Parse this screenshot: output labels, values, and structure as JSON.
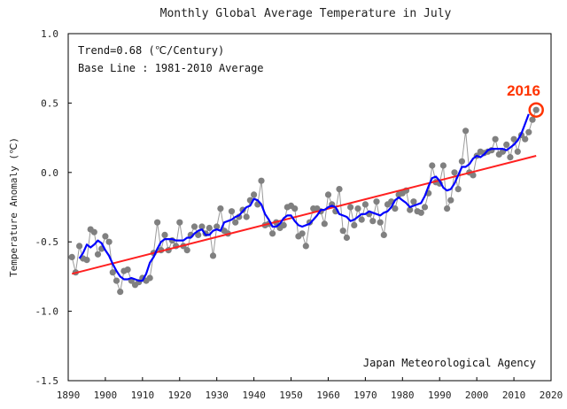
{
  "chart_data": {
    "type": "line",
    "title": "Monthly Global Average Temperature in July",
    "xlabel": "",
    "ylabel": "Temperature Anomaly (℃)",
    "xlim": [
      1890,
      2020
    ],
    "ylim": [
      -1.5,
      1.0
    ],
    "x_ticks": [
      "1890",
      "1900",
      "1910",
      "1920",
      "1930",
      "1940",
      "1950",
      "1960",
      "1970",
      "1980",
      "1990",
      "2000",
      "2010",
      "2020"
    ],
    "y_ticks": [
      "1.0",
      "0.5",
      "0.0",
      "-0.5",
      "-1.0",
      "-1.5"
    ],
    "annotations": {
      "trend": "Trend=0.68 (℃/Century)",
      "baseline": "Base Line : 1981-2010 Average",
      "source": "Japan Meteorological Agency",
      "highlight": "2016"
    },
    "colors": {
      "annual": "#808080",
      "running_mean": "#0000ff",
      "trend": "#ff2020",
      "highlight": "#ff3300"
    },
    "series": [
      {
        "name": "annual",
        "style": "gray line with dots",
        "x": [
          1891,
          1892,
          1893,
          1894,
          1895,
          1896,
          1897,
          1898,
          1899,
          1900,
          1901,
          1902,
          1903,
          1904,
          1905,
          1906,
          1907,
          1908,
          1909,
          1910,
          1911,
          1912,
          1913,
          1914,
          1915,
          1916,
          1917,
          1918,
          1919,
          1920,
          1921,
          1922,
          1923,
          1924,
          1925,
          1926,
          1927,
          1928,
          1929,
          1930,
          1931,
          1932,
          1933,
          1934,
          1935,
          1936,
          1937,
          1938,
          1939,
          1940,
          1941,
          1942,
          1943,
          1944,
          1945,
          1946,
          1947,
          1948,
          1949,
          1950,
          1951,
          1952,
          1953,
          1954,
          1955,
          1956,
          1957,
          1958,
          1959,
          1960,
          1961,
          1962,
          1963,
          1964,
          1965,
          1966,
          1967,
          1968,
          1969,
          1970,
          1971,
          1972,
          1973,
          1974,
          1975,
          1976,
          1977,
          1978,
          1979,
          1980,
          1981,
          1982,
          1983,
          1984,
          1985,
          1986,
          1987,
          1988,
          1989,
          1990,
          1991,
          1992,
          1993,
          1994,
          1995,
          1996,
          1997,
          1998,
          1999,
          2000,
          2001,
          2002,
          2003,
          2004,
          2005,
          2006,
          2007,
          2008,
          2009,
          2010,
          2011,
          2012,
          2013,
          2014,
          2015,
          2016
        ],
        "y": [
          -0.61,
          -0.72,
          -0.53,
          -0.62,
          -0.63,
          -0.41,
          -0.43,
          -0.59,
          -0.55,
          -0.46,
          -0.5,
          -0.72,
          -0.78,
          -0.86,
          -0.71,
          -0.7,
          -0.78,
          -0.81,
          -0.79,
          -0.76,
          -0.78,
          -0.76,
          -0.58,
          -0.36,
          -0.56,
          -0.45,
          -0.56,
          -0.49,
          -0.53,
          -0.36,
          -0.53,
          -0.56,
          -0.45,
          -0.39,
          -0.45,
          -0.39,
          -0.44,
          -0.4,
          -0.6,
          -0.39,
          -0.26,
          -0.42,
          -0.44,
          -0.28,
          -0.36,
          -0.32,
          -0.27,
          -0.32,
          -0.2,
          -0.16,
          -0.23,
          -0.06,
          -0.38,
          -0.37,
          -0.44,
          -0.36,
          -0.4,
          -0.38,
          -0.25,
          -0.24,
          -0.26,
          -0.46,
          -0.44,
          -0.53,
          -0.36,
          -0.26,
          -0.26,
          -0.28,
          -0.37,
          -0.16,
          -0.23,
          -0.28,
          -0.12,
          -0.42,
          -0.47,
          -0.25,
          -0.38,
          -0.26,
          -0.34,
          -0.23,
          -0.3,
          -0.35,
          -0.21,
          -0.36,
          -0.45,
          -0.23,
          -0.21,
          -0.26,
          -0.16,
          -0.15,
          -0.13,
          -0.27,
          -0.21,
          -0.28,
          -0.29,
          -0.25,
          -0.15,
          0.05,
          -0.07,
          -0.08,
          0.05,
          -0.26,
          -0.2,
          0.0,
          -0.12,
          0.08,
          0.3,
          0.0,
          -0.02,
          0.12,
          0.15,
          0.14,
          0.15,
          0.16,
          0.24,
          0.13,
          0.15,
          0.2,
          0.11,
          0.24,
          0.15,
          0.27,
          0.24,
          0.29,
          0.38,
          0.45
        ]
      },
      {
        "name": "running_mean",
        "style": "blue 5-year running mean",
        "x": [
          1893,
          1894,
          1895,
          1896,
          1897,
          1898,
          1899,
          1900,
          1901,
          1902,
          1903,
          1904,
          1905,
          1906,
          1907,
          1908,
          1909,
          1910,
          1911,
          1912,
          1913,
          1914,
          1915,
          1916,
          1917,
          1918,
          1919,
          1920,
          1921,
          1922,
          1923,
          1924,
          1925,
          1926,
          1927,
          1928,
          1929,
          1930,
          1931,
          1932,
          1933,
          1934,
          1935,
          1936,
          1937,
          1938,
          1939,
          1940,
          1941,
          1942,
          1943,
          1944,
          1945,
          1946,
          1947,
          1948,
          1949,
          1950,
          1951,
          1952,
          1953,
          1954,
          1955,
          1956,
          1957,
          1958,
          1959,
          1960,
          1961,
          1962,
          1963,
          1964,
          1965,
          1966,
          1967,
          1968,
          1969,
          1970,
          1971,
          1972,
          1973,
          1974,
          1975,
          1976,
          1977,
          1978,
          1979,
          1980,
          1981,
          1982,
          1983,
          1984,
          1985,
          1986,
          1987,
          1988,
          1989,
          1990,
          1991,
          1992,
          1993,
          1994,
          1995,
          1996,
          1997,
          1998,
          1999,
          2000,
          2001,
          2002,
          2003,
          2004,
          2005,
          2006,
          2007,
          2008,
          2009,
          2010,
          2011,
          2012,
          2013,
          2014
        ],
        "y": [
          -0.62,
          -0.58,
          -0.52,
          -0.54,
          -0.52,
          -0.49,
          -0.51,
          -0.56,
          -0.6,
          -0.66,
          -0.71,
          -0.75,
          -0.77,
          -0.77,
          -0.76,
          -0.77,
          -0.78,
          -0.78,
          -0.73,
          -0.65,
          -0.61,
          -0.55,
          -0.5,
          -0.48,
          -0.48,
          -0.48,
          -0.49,
          -0.49,
          -0.49,
          -0.47,
          -0.47,
          -0.44,
          -0.42,
          -0.41,
          -0.45,
          -0.45,
          -0.42,
          -0.41,
          -0.42,
          -0.36,
          -0.35,
          -0.34,
          -0.32,
          -0.31,
          -0.28,
          -0.25,
          -0.24,
          -0.19,
          -0.2,
          -0.23,
          -0.3,
          -0.34,
          -0.39,
          -0.39,
          -0.37,
          -0.33,
          -0.31,
          -0.31,
          -0.35,
          -0.38,
          -0.39,
          -0.38,
          -0.37,
          -0.34,
          -0.31,
          -0.27,
          -0.27,
          -0.25,
          -0.24,
          -0.25,
          -0.3,
          -0.31,
          -0.32,
          -0.35,
          -0.34,
          -0.32,
          -0.3,
          -0.3,
          -0.28,
          -0.29,
          -0.3,
          -0.31,
          -0.29,
          -0.28,
          -0.25,
          -0.2,
          -0.18,
          -0.2,
          -0.22,
          -0.25,
          -0.24,
          -0.23,
          -0.22,
          -0.17,
          -0.1,
          -0.04,
          -0.03,
          -0.06,
          -0.11,
          -0.13,
          -0.12,
          -0.08,
          -0.02,
          0.04,
          0.04,
          0.06,
          0.1,
          0.12,
          0.11,
          0.13,
          0.16,
          0.17,
          0.17,
          0.17,
          0.17,
          0.16,
          0.18,
          0.2,
          0.23,
          0.28,
          0.35,
          0.42
        ]
      },
      {
        "name": "trend",
        "style": "red linear trend",
        "x": [
          1891,
          2016
        ],
        "y": [
          -0.73,
          0.12
        ]
      }
    ]
  }
}
